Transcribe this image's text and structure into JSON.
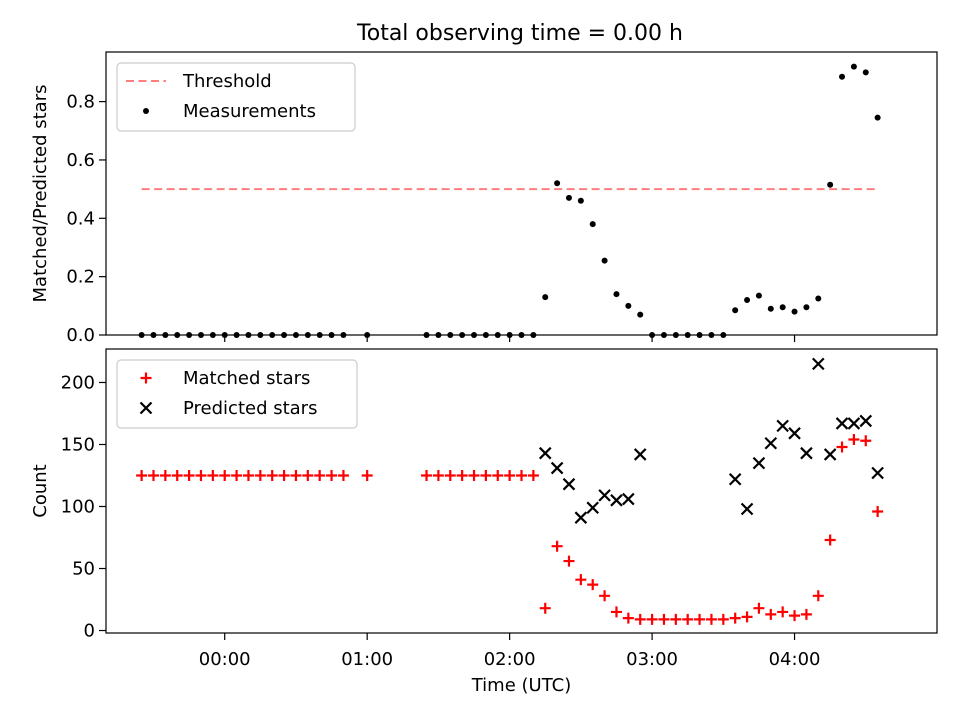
{
  "figure": {
    "title": "Total observing time = 0.00 h"
  },
  "chart_data": [
    {
      "type": "scatter",
      "title": "Total observing time = 0.00 h",
      "ylabel": "Matched/Predicted stars",
      "xlabel": "",
      "xlim": [
        "23:10",
        "05:00"
      ],
      "ylim": [
        0,
        0.97
      ],
      "yticks": [
        0.0,
        0.2,
        0.4,
        0.6,
        0.8
      ],
      "ytick_labels": [
        "0.0",
        "0.2",
        "0.4",
        "0.6",
        "0.8"
      ],
      "xticks": [
        "00:00",
        "01:00",
        "02:00",
        "03:00",
        "04:00"
      ],
      "show_xtick_labels": false,
      "legend": {
        "placement": "upper-left",
        "entries": [
          "Threshold",
          "Measurements"
        ]
      },
      "series": [
        {
          "name": "Threshold",
          "style": "dashed-line",
          "color": "#ff7f7f",
          "points": [
            [
              "23:25",
              0.5
            ],
            [
              "04:35",
              0.5
            ]
          ]
        },
        {
          "name": "Measurements",
          "style": "dot",
          "color": "#000000",
          "points": [
            [
              "23:25",
              0.0
            ],
            [
              "23:30",
              0.0
            ],
            [
              "23:35",
              0.0
            ],
            [
              "23:40",
              0.0
            ],
            [
              "23:45",
              0.0
            ],
            [
              "23:50",
              0.0
            ],
            [
              "23:55",
              0.0
            ],
            [
              "00:00",
              0.0
            ],
            [
              "00:05",
              0.0
            ],
            [
              "00:10",
              0.0
            ],
            [
              "00:15",
              0.0
            ],
            [
              "00:20",
              0.0
            ],
            [
              "00:25",
              0.0
            ],
            [
              "00:30",
              0.0
            ],
            [
              "00:35",
              0.0
            ],
            [
              "00:40",
              0.0
            ],
            [
              "00:45",
              0.0
            ],
            [
              "00:50",
              0.0
            ],
            [
              "01:00",
              0.0
            ],
            [
              "01:25",
              0.0
            ],
            [
              "01:30",
              0.0
            ],
            [
              "01:35",
              0.0
            ],
            [
              "01:40",
              0.0
            ],
            [
              "01:45",
              0.0
            ],
            [
              "01:50",
              0.0
            ],
            [
              "01:55",
              0.0
            ],
            [
              "02:00",
              0.0
            ],
            [
              "02:05",
              0.0
            ],
            [
              "02:10",
              0.0
            ],
            [
              "02:15",
              0.13
            ],
            [
              "02:20",
              0.52
            ],
            [
              "02:25",
              0.47
            ],
            [
              "02:30",
              0.46
            ],
            [
              "02:35",
              0.38
            ],
            [
              "02:40",
              0.255
            ],
            [
              "02:45",
              0.14
            ],
            [
              "02:50",
              0.1
            ],
            [
              "02:55",
              0.07
            ],
            [
              "03:00",
              0.0
            ],
            [
              "03:05",
              0.0
            ],
            [
              "03:10",
              0.0
            ],
            [
              "03:15",
              0.0
            ],
            [
              "03:20",
              0.0
            ],
            [
              "03:25",
              0.0
            ],
            [
              "03:30",
              0.0
            ],
            [
              "03:35",
              0.085
            ],
            [
              "03:40",
              0.12
            ],
            [
              "03:45",
              0.135
            ],
            [
              "03:50",
              0.09
            ],
            [
              "03:55",
              0.095
            ],
            [
              "04:00",
              0.08
            ],
            [
              "04:05",
              0.095
            ],
            [
              "04:10",
              0.125
            ],
            [
              "04:15",
              0.515
            ],
            [
              "04:20",
              0.885
            ],
            [
              "04:25",
              0.92
            ],
            [
              "04:30",
              0.9
            ],
            [
              "04:35",
              0.745
            ]
          ]
        }
      ]
    },
    {
      "type": "scatter",
      "title": "",
      "ylabel": "Count",
      "xlabel": "Time (UTC)",
      "xlim": [
        "23:10",
        "05:00"
      ],
      "ylim": [
        -2,
        227
      ],
      "yticks": [
        0,
        50,
        100,
        150,
        200
      ],
      "ytick_labels": [
        "0",
        "50",
        "100",
        "150",
        "200"
      ],
      "xticks": [
        "00:00",
        "01:00",
        "02:00",
        "03:00",
        "04:00"
      ],
      "xtick_labels": [
        "00:00",
        "01:00",
        "02:00",
        "03:00",
        "04:00"
      ],
      "show_xtick_labels": true,
      "legend": {
        "placement": "upper-left",
        "entries": [
          "Matched stars",
          "Predicted stars"
        ]
      },
      "series": [
        {
          "name": "Matched stars",
          "style": "plus",
          "color": "#ff0000",
          "points": [
            [
              "23:25",
              125
            ],
            [
              "23:30",
              125
            ],
            [
              "23:35",
              125
            ],
            [
              "23:40",
              125
            ],
            [
              "23:45",
              125
            ],
            [
              "23:50",
              125
            ],
            [
              "23:55",
              125
            ],
            [
              "00:00",
              125
            ],
            [
              "00:05",
              125
            ],
            [
              "00:10",
              125
            ],
            [
              "00:15",
              125
            ],
            [
              "00:20",
              125
            ],
            [
              "00:25",
              125
            ],
            [
              "00:30",
              125
            ],
            [
              "00:35",
              125
            ],
            [
              "00:40",
              125
            ],
            [
              "00:45",
              125
            ],
            [
              "00:50",
              125
            ],
            [
              "01:00",
              125
            ],
            [
              "01:25",
              125
            ],
            [
              "01:30",
              125
            ],
            [
              "01:35",
              125
            ],
            [
              "01:40",
              125
            ],
            [
              "01:45",
              125
            ],
            [
              "01:50",
              125
            ],
            [
              "01:55",
              125
            ],
            [
              "02:00",
              125
            ],
            [
              "02:05",
              125
            ],
            [
              "02:10",
              125
            ],
            [
              "02:15",
              18
            ],
            [
              "02:20",
              68
            ],
            [
              "02:25",
              56
            ],
            [
              "02:30",
              41
            ],
            [
              "02:35",
              37
            ],
            [
              "02:40",
              28
            ],
            [
              "02:45",
              15
            ],
            [
              "02:50",
              10
            ],
            [
              "02:55",
              9
            ],
            [
              "03:00",
              9
            ],
            [
              "03:05",
              9
            ],
            [
              "03:10",
              9
            ],
            [
              "03:15",
              9
            ],
            [
              "03:20",
              9
            ],
            [
              "03:25",
              9
            ],
            [
              "03:30",
              9
            ],
            [
              "03:35",
              10
            ],
            [
              "03:40",
              11
            ],
            [
              "03:45",
              18
            ],
            [
              "03:50",
              13
            ],
            [
              "03:55",
              15
            ],
            [
              "04:00",
              12
            ],
            [
              "04:05",
              13
            ],
            [
              "04:10",
              28
            ],
            [
              "04:15",
              73
            ],
            [
              "04:20",
              148
            ],
            [
              "04:25",
              154
            ],
            [
              "04:30",
              153
            ],
            [
              "04:35",
              96
            ]
          ]
        },
        {
          "name": "Predicted stars",
          "style": "x",
          "color": "#000000",
          "points": [
            [
              "02:15",
              143
            ],
            [
              "02:20",
              131
            ],
            [
              "02:25",
              118
            ],
            [
              "02:30",
              91
            ],
            [
              "02:35",
              99
            ],
            [
              "02:40",
              109
            ],
            [
              "02:45",
              105
            ],
            [
              "02:50",
              106
            ],
            [
              "02:55",
              142
            ],
            [
              "03:35",
              122
            ],
            [
              "03:40",
              98
            ],
            [
              "03:45",
              135
            ],
            [
              "03:50",
              151
            ],
            [
              "03:55",
              165
            ],
            [
              "04:00",
              159
            ],
            [
              "04:05",
              143
            ],
            [
              "04:10",
              215
            ],
            [
              "04:15",
              142
            ],
            [
              "04:20",
              167
            ],
            [
              "04:25",
              167
            ],
            [
              "04:30",
              169
            ],
            [
              "04:35",
              127
            ]
          ]
        }
      ]
    }
  ]
}
